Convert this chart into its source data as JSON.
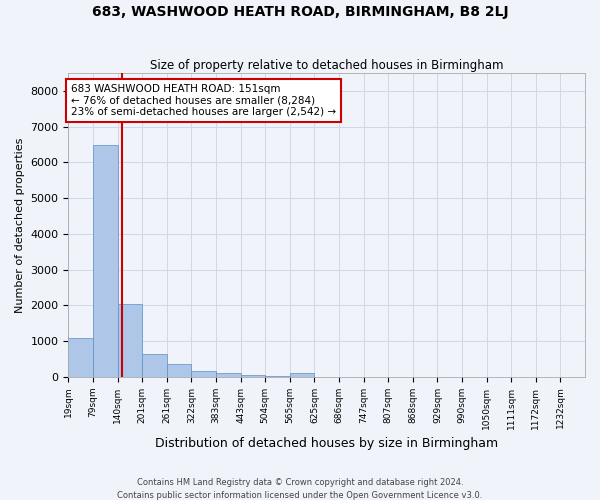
{
  "title": "683, WASHWOOD HEATH ROAD, BIRMINGHAM, B8 2LJ",
  "subtitle": "Size of property relative to detached houses in Birmingham",
  "xlabel": "Distribution of detached houses by size in Birmingham",
  "ylabel": "Number of detached properties",
  "bar_labels": [
    "19sqm",
    "79sqm",
    "140sqm",
    "201sqm",
    "261sqm",
    "322sqm",
    "383sqm",
    "443sqm",
    "504sqm",
    "565sqm",
    "625sqm",
    "686sqm",
    "747sqm",
    "807sqm",
    "868sqm",
    "929sqm",
    "990sqm",
    "1050sqm",
    "1111sqm",
    "1172sqm",
    "1232sqm"
  ],
  "bar_heights": [
    1100,
    6500,
    2050,
    650,
    350,
    150,
    120,
    60,
    30,
    100,
    0,
    0,
    0,
    0,
    0,
    0,
    0,
    0,
    0,
    0,
    0
  ],
  "bar_color": "#aec6e8",
  "bar_edge_color": "#5b8fc9",
  "grid_color": "#d0d8e8",
  "background_color": "#f0f4fa",
  "red_line_after_bar": 2,
  "annotation_title": "683 WASHWOOD HEATH ROAD: 151sqm",
  "annotation_line1": "← 76% of detached houses are smaller (8,284)",
  "annotation_line2": "23% of semi-detached houses are larger (2,542) →",
  "annotation_box_color": "#ffffff",
  "annotation_border_color": "#cc0000",
  "ylim": [
    0,
    8500
  ],
  "yticks": [
    0,
    1000,
    2000,
    3000,
    4000,
    5000,
    6000,
    7000,
    8000
  ],
  "footer1": "Contains HM Land Registry data © Crown copyright and database right 2024.",
  "footer2": "Contains public sector information licensed under the Open Government Licence v3.0."
}
